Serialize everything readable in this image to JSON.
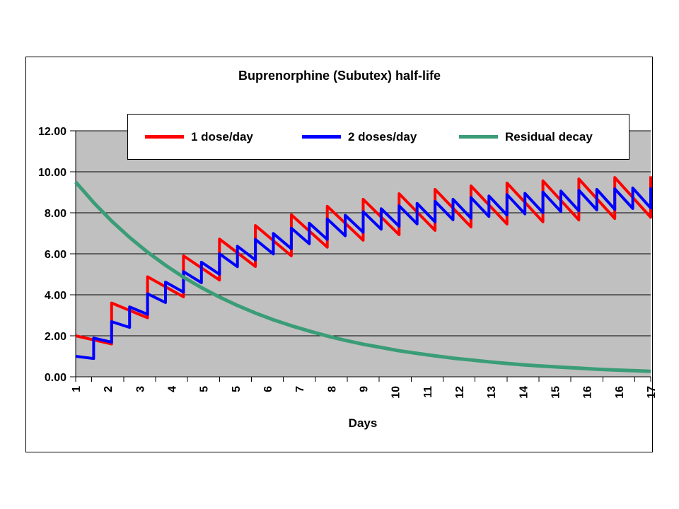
{
  "window": {
    "background": "#ffffff"
  },
  "chart_data": {
    "type": "line",
    "title": "Buprenorphine (Subutex) half-life",
    "xlabel": "Days",
    "ylabel": "",
    "ylim": [
      0,
      12
    ],
    "x_range": [
      1,
      17
    ],
    "grid": true,
    "legend_position": "top-inside",
    "plot_bg_color": "#c0c0c0",
    "grid_color": "#000000",
    "axis_color": "#000000",
    "y_tick_labels": [
      "0.00",
      "2.00",
      "4.00",
      "6.00",
      "8.00",
      "10.00",
      "12.00"
    ],
    "x_tick_labels": [
      "1",
      "2",
      "3",
      "4",
      "5",
      "5",
      "6",
      "7",
      "8",
      "9",
      "10",
      "11",
      "12",
      "13",
      "14",
      "15",
      "16",
      "16",
      "17"
    ],
    "series": [
      {
        "name": "1 dose/day",
        "color": "#ff0000",
        "width": 4,
        "points": [
          [
            1,
            2.0
          ],
          [
            2,
            1.6
          ],
          [
            2,
            3.6
          ],
          [
            3,
            2.88
          ],
          [
            3,
            4.88
          ],
          [
            4,
            3.9
          ],
          [
            4,
            5.9
          ],
          [
            5,
            4.72
          ],
          [
            5,
            6.72
          ],
          [
            6,
            5.38
          ],
          [
            6,
            7.38
          ],
          [
            7,
            5.9
          ],
          [
            7,
            7.9
          ],
          [
            8,
            6.32
          ],
          [
            8,
            8.32
          ],
          [
            9,
            6.66
          ],
          [
            9,
            8.66
          ],
          [
            10,
            6.93
          ],
          [
            10,
            8.93
          ],
          [
            11,
            7.14
          ],
          [
            11,
            9.14
          ],
          [
            12,
            7.31
          ],
          [
            12,
            9.31
          ],
          [
            13,
            7.45
          ],
          [
            13,
            9.45
          ],
          [
            14,
            7.56
          ],
          [
            14,
            9.56
          ],
          [
            15,
            7.65
          ],
          [
            15,
            9.65
          ],
          [
            16,
            7.72
          ],
          [
            16,
            9.72
          ],
          [
            17,
            7.78
          ],
          [
            17,
            9.78
          ]
        ]
      },
      {
        "name": "2 doses/day",
        "color": "#0000ff",
        "width": 4,
        "points": [
          [
            1,
            1.0
          ],
          [
            1.5,
            0.89
          ],
          [
            1.5,
            1.89
          ],
          [
            2,
            1.69
          ],
          [
            2,
            2.69
          ],
          [
            2.5,
            2.41
          ],
          [
            2.5,
            3.41
          ],
          [
            3,
            3.05
          ],
          [
            3,
            4.05
          ],
          [
            3.5,
            3.62
          ],
          [
            3.5,
            4.62
          ],
          [
            4,
            4.13
          ],
          [
            4,
            5.13
          ],
          [
            4.5,
            4.59
          ],
          [
            4.5,
            5.59
          ],
          [
            5,
            5.0
          ],
          [
            5,
            6.0
          ],
          [
            5.5,
            5.37
          ],
          [
            5.5,
            6.37
          ],
          [
            6,
            5.7
          ],
          [
            6,
            6.7
          ],
          [
            6.5,
            5.99
          ],
          [
            6.5,
            6.99
          ],
          [
            7,
            6.25
          ],
          [
            7,
            7.25
          ],
          [
            7.5,
            6.49
          ],
          [
            7.5,
            7.49
          ],
          [
            8,
            6.7
          ],
          [
            8,
            7.7
          ],
          [
            8.5,
            6.88
          ],
          [
            8.5,
            7.88
          ],
          [
            9,
            7.05
          ],
          [
            9,
            8.05
          ],
          [
            9.5,
            7.2
          ],
          [
            9.5,
            8.2
          ],
          [
            10,
            7.34
          ],
          [
            10,
            8.34
          ],
          [
            10.5,
            7.46
          ],
          [
            10.5,
            8.46
          ],
          [
            11,
            7.56
          ],
          [
            11,
            8.56
          ],
          [
            11.5,
            7.66
          ],
          [
            11.5,
            8.66
          ],
          [
            12,
            7.74
          ],
          [
            12,
            8.74
          ],
          [
            12.5,
            7.82
          ],
          [
            12.5,
            8.82
          ],
          [
            13,
            7.89
          ],
          [
            13,
            8.89
          ],
          [
            13.5,
            7.95
          ],
          [
            13.5,
            8.95
          ],
          [
            14,
            8.01
          ],
          [
            14,
            9.01
          ],
          [
            14.5,
            8.06
          ],
          [
            14.5,
            9.06
          ],
          [
            15,
            8.1
          ],
          [
            15,
            9.1
          ],
          [
            15.5,
            8.14
          ],
          [
            15.5,
            9.14
          ],
          [
            16,
            8.17
          ],
          [
            16,
            9.17
          ],
          [
            16.5,
            8.21
          ],
          [
            16.5,
            9.21
          ],
          [
            17,
            8.23
          ],
          [
            17,
            9.23
          ]
        ]
      },
      {
        "name": "Residual decay",
        "color": "#3a9d77",
        "width": 5,
        "points": [
          [
            1,
            9.5
          ],
          [
            1.5,
            8.5
          ],
          [
            2,
            7.6
          ],
          [
            2.5,
            6.8
          ],
          [
            3,
            6.08
          ],
          [
            3.5,
            5.44
          ],
          [
            4,
            4.86
          ],
          [
            4.5,
            4.35
          ],
          [
            5,
            3.89
          ],
          [
            5.5,
            3.48
          ],
          [
            6,
            3.11
          ],
          [
            6.5,
            2.78
          ],
          [
            7,
            2.49
          ],
          [
            7.5,
            2.23
          ],
          [
            8,
            1.99
          ],
          [
            8.5,
            1.78
          ],
          [
            9,
            1.59
          ],
          [
            9.5,
            1.43
          ],
          [
            10,
            1.27
          ],
          [
            10.5,
            1.14
          ],
          [
            11,
            1.02
          ],
          [
            11.5,
            0.91
          ],
          [
            12,
            0.82
          ],
          [
            12.5,
            0.73
          ],
          [
            13,
            0.65
          ],
          [
            13.5,
            0.58
          ],
          [
            14,
            0.52
          ],
          [
            14.5,
            0.47
          ],
          [
            15,
            0.42
          ],
          [
            15.5,
            0.37
          ],
          [
            16,
            0.33
          ],
          [
            16.5,
            0.3
          ],
          [
            17,
            0.27
          ]
        ]
      }
    ]
  }
}
